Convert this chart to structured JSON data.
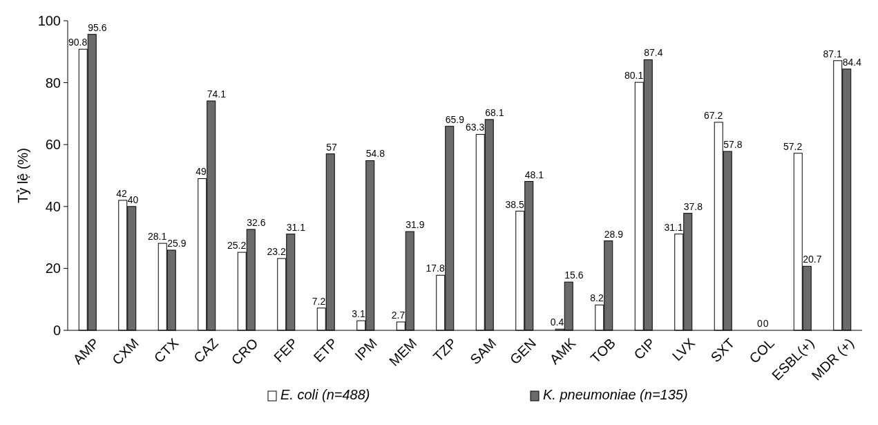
{
  "chart_data": {
    "type": "bar",
    "ylabel": "Tỷ lệ (%)",
    "categories": [
      "AMP",
      "CXM",
      "CTX",
      "CAZ",
      "CRO",
      "FEP",
      "ETP",
      "IPM",
      "MEM",
      "TZP",
      "SAM",
      "GEN",
      "AMK",
      "TOB",
      "CIP",
      "LVX",
      "SXT",
      "COL",
      "ESBL(+)",
      "MDR (+)"
    ],
    "series": [
      {
        "name": "E. coli (n=488)",
        "color": "#ffffff",
        "values": [
          90.8,
          42,
          28.1,
          49,
          25.2,
          23.2,
          7.2,
          3.1,
          2.7,
          17.8,
          63.3,
          38.5,
          0.4,
          8.2,
          80.1,
          31.1,
          67.2,
          0,
          57.2,
          87.1
        ]
      },
      {
        "name": "K. pneumoniae (n=135)",
        "color": "#6b6b6b",
        "values": [
          95.6,
          40,
          25.9,
          74.1,
          32.6,
          31.1,
          57,
          54.8,
          31.9,
          65.9,
          68.1,
          48.1,
          15.6,
          28.9,
          87.4,
          37.8,
          57.8,
          0,
          20.7,
          84.4
        ]
      }
    ],
    "ylim": [
      0,
      100
    ],
    "yticks": [
      0,
      20,
      40,
      60,
      80,
      100
    ],
    "grid": false,
    "legend": "bottom",
    "data_labels": true
  }
}
